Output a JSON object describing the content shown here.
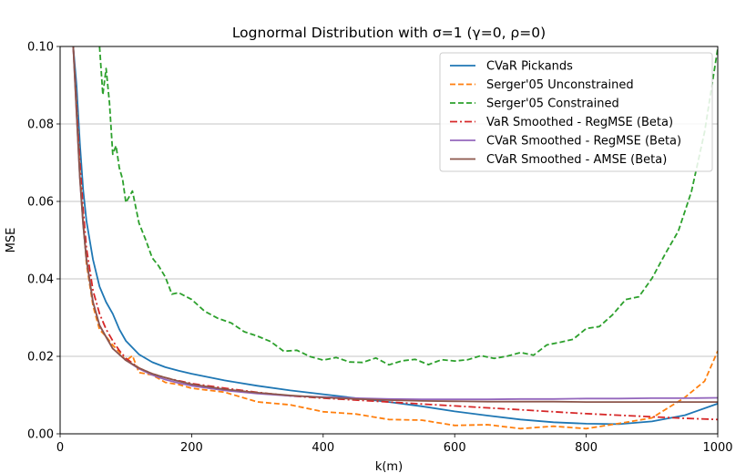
{
  "chart_data": {
    "type": "line",
    "title": "Lognormal Distribution with σ=1 (γ=0, ρ=0)",
    "xlabel": "k(m)",
    "ylabel": "MSE",
    "xlim": [
      0,
      1000
    ],
    "ylim": [
      0,
      0.1
    ],
    "x_ticks": [
      "0",
      "200",
      "400",
      "600",
      "800",
      "1000"
    ],
    "y_ticks": [
      "0.00",
      "0.02",
      "0.04",
      "0.06",
      "0.08",
      "0.10"
    ],
    "grid": "horizontal",
    "legend_position": "top-right",
    "series": [
      {
        "name": "CVaR Pickands",
        "color": "#1f77b4",
        "style": "solid",
        "x": [
          20,
          25,
          30,
          35,
          40,
          50,
          60,
          70,
          80,
          90,
          100,
          120,
          140,
          160,
          180,
          200,
          250,
          300,
          350,
          400,
          450,
          500,
          550,
          600,
          650,
          700,
          750,
          800,
          850,
          900,
          950,
          1000
        ],
        "y": [
          0.1,
          0.09,
          0.075,
          0.063,
          0.055,
          0.045,
          0.038,
          0.034,
          0.031,
          0.027,
          0.024,
          0.0205,
          0.0185,
          0.0172,
          0.0163,
          0.0155,
          0.0138,
          0.0124,
          0.0112,
          0.0102,
          0.0092,
          0.0082,
          0.0071,
          0.0058,
          0.0047,
          0.0037,
          0.003,
          0.0026,
          0.0025,
          0.0032,
          0.0048,
          0.0078
        ]
      },
      {
        "name": "Serger'05 Unconstrained",
        "color": "#ff7f0e",
        "style": "dashed",
        "x": [
          20,
          25,
          30,
          35,
          40,
          50,
          60,
          70,
          80,
          90,
          100,
          110,
          120,
          140,
          160,
          180,
          200,
          250,
          300,
          350,
          400,
          450,
          500,
          550,
          600,
          650,
          700,
          750,
          800,
          850,
          900,
          950,
          980,
          1000
        ],
        "y": [
          0.1,
          0.085,
          0.068,
          0.055,
          0.044,
          0.033,
          0.027,
          0.025,
          0.023,
          0.021,
          0.019,
          0.02,
          0.016,
          0.015,
          0.0135,
          0.0125,
          0.012,
          0.0105,
          0.0085,
          0.0072,
          0.006,
          0.0048,
          0.004,
          0.0032,
          0.0025,
          0.002,
          0.0017,
          0.0016,
          0.0017,
          0.0023,
          0.0045,
          0.009,
          0.014,
          0.021
        ]
      },
      {
        "name": "Serger'05 Constrained",
        "color": "#2ca02c",
        "style": "dashed",
        "x": [
          60,
          65,
          70,
          75,
          80,
          85,
          90,
          95,
          100,
          110,
          120,
          130,
          140,
          150,
          160,
          170,
          180,
          200,
          220,
          240,
          260,
          280,
          300,
          320,
          340,
          360,
          380,
          400,
          420,
          440,
          460,
          480,
          500,
          520,
          540,
          560,
          580,
          600,
          620,
          640,
          660,
          680,
          700,
          720,
          740,
          760,
          780,
          800,
          820,
          840,
          860,
          880,
          900,
          920,
          940,
          960,
          980,
          1000
        ],
        "y": [
          0.1,
          0.087,
          0.095,
          0.085,
          0.072,
          0.075,
          0.068,
          0.066,
          0.06,
          0.062,
          0.055,
          0.05,
          0.045,
          0.044,
          0.04,
          0.036,
          0.037,
          0.034,
          0.032,
          0.03,
          0.028,
          0.027,
          0.025,
          0.0235,
          0.022,
          0.021,
          0.02,
          0.0195,
          0.019,
          0.019,
          0.0185,
          0.019,
          0.0185,
          0.0185,
          0.019,
          0.0185,
          0.0185,
          0.019,
          0.0195,
          0.0195,
          0.02,
          0.02,
          0.0205,
          0.021,
          0.0225,
          0.0235,
          0.025,
          0.0265,
          0.028,
          0.031,
          0.034,
          0.036,
          0.04,
          0.046,
          0.053,
          0.062,
          0.078,
          0.1
        ]
      },
      {
        "name": "VaR Smoothed - RegMSE (Beta)",
        "color": "#d62728",
        "style": "dashdot",
        "x": [
          20,
          25,
          30,
          35,
          40,
          50,
          60,
          70,
          80,
          90,
          100,
          120,
          140,
          160,
          180,
          200,
          250,
          300,
          350,
          400,
          450,
          500,
          550,
          600,
          650,
          700,
          750,
          800,
          850,
          900,
          950,
          1000
        ],
        "y": [
          0.1,
          0.085,
          0.07,
          0.058,
          0.048,
          0.037,
          0.031,
          0.027,
          0.024,
          0.0215,
          0.0195,
          0.017,
          0.0155,
          0.0145,
          0.0137,
          0.013,
          0.0118,
          0.0107,
          0.0098,
          0.0092,
          0.0087,
          0.0082,
          0.0077,
          0.0072,
          0.0067,
          0.0062,
          0.0057,
          0.0052,
          0.0048,
          0.0044,
          0.004,
          0.0037
        ]
      },
      {
        "name": "CVaR Smoothed - RegMSE (Beta)",
        "color": "#9467bd",
        "style": "solid",
        "x": [
          20,
          25,
          30,
          35,
          40,
          50,
          60,
          70,
          80,
          90,
          100,
          120,
          140,
          160,
          180,
          200,
          250,
          300,
          350,
          400,
          450,
          500,
          550,
          600,
          650,
          700,
          750,
          800,
          850,
          900,
          950,
          1000
        ],
        "y": [
          0.1,
          0.083,
          0.066,
          0.054,
          0.045,
          0.034,
          0.028,
          0.025,
          0.022,
          0.0205,
          0.019,
          0.0168,
          0.0152,
          0.014,
          0.0131,
          0.0124,
          0.0112,
          0.0104,
          0.0098,
          0.0095,
          0.0092,
          0.009,
          0.0089,
          0.0089,
          0.0089,
          0.009,
          0.009,
          0.0091,
          0.0091,
          0.0092,
          0.0092,
          0.0093
        ]
      },
      {
        "name": "CVaR Smoothed - AMSE (Beta)",
        "color": "#8c564b",
        "style": "solid",
        "x": [
          20,
          25,
          30,
          35,
          40,
          50,
          60,
          70,
          80,
          90,
          100,
          120,
          140,
          160,
          180,
          200,
          250,
          300,
          350,
          400,
          450,
          500,
          550,
          600,
          650,
          700,
          750,
          800,
          850,
          900,
          950,
          1000
        ],
        "y": [
          0.1,
          0.083,
          0.066,
          0.054,
          0.045,
          0.034,
          0.028,
          0.025,
          0.022,
          0.0205,
          0.019,
          0.017,
          0.0155,
          0.0145,
          0.0136,
          0.0128,
          0.0115,
          0.0106,
          0.0099,
          0.0094,
          0.009,
          0.0087,
          0.0085,
          0.0084,
          0.0083,
          0.0083,
          0.0083,
          0.0082,
          0.0082,
          0.0082,
          0.0082,
          0.0082
        ]
      }
    ]
  }
}
